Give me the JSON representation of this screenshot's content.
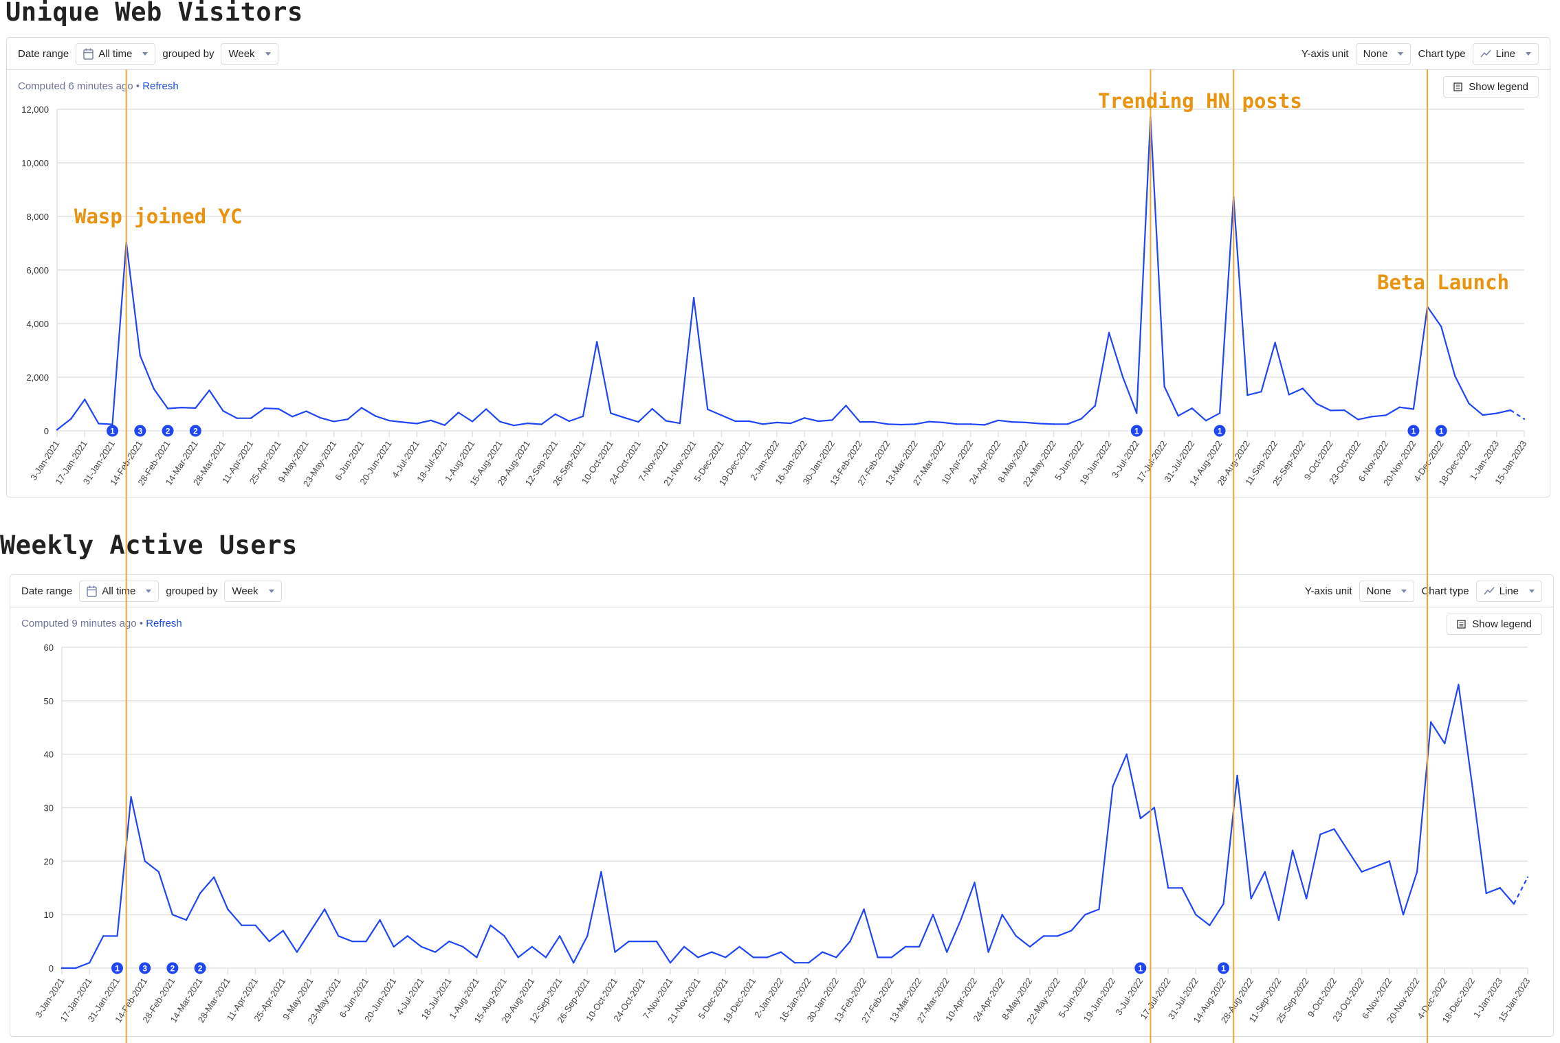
{
  "charts": [
    {
      "title": "Unique Web Visitors",
      "toolbar": {
        "date_range_label": "Date range",
        "date_range_value": "All time",
        "grouped_by_label": "grouped by",
        "grouped_by_value": "Week",
        "y_axis_unit_label": "Y-axis unit",
        "y_axis_unit_value": "None",
        "chart_type_label": "Chart type",
        "chart_type_value": "Line"
      },
      "computed_text": "Computed 6 minutes ago",
      "separator": "•",
      "refresh_label": "Refresh",
      "show_legend_label": "Show legend"
    },
    {
      "title": "Weekly Active Users",
      "toolbar": {
        "date_range_label": "Date range",
        "date_range_value": "All time",
        "grouped_by_label": "grouped by",
        "grouped_by_value": "Week",
        "y_axis_unit_label": "Y-axis unit",
        "y_axis_unit_value": "None",
        "chart_type_label": "Chart type",
        "chart_type_value": "Line"
      },
      "computed_text": "Computed 9 minutes ago",
      "separator": "•",
      "refresh_label": "Refresh",
      "show_legend_label": "Show legend"
    }
  ],
  "events": {
    "lines": [
      {
        "date": "7-Feb-2021"
      },
      {
        "date": "10-Jul-2022"
      },
      {
        "date": "21-Aug-2022"
      },
      {
        "date": "27-Nov-2022"
      }
    ],
    "labels": [
      {
        "text": "Wasp joined YC"
      },
      {
        "text": "Trending HN posts"
      },
      {
        "text": "Beta Launch"
      }
    ],
    "color": "#f0a530",
    "text_color": "#e8940f"
  },
  "colors": {
    "series": "#1f45f5",
    "grid": "#e3e3e3",
    "marker": "#1f45f5"
  },
  "icons": {
    "date_range": "calendar-icon",
    "chart_type": "line-chart-icon",
    "legend": "list-icon",
    "dropdown": "caret-down-icon"
  },
  "chart_data": [
    {
      "type": "line",
      "title": "Unique Web Visitors",
      "ylim": [
        0,
        12000
      ],
      "yticks": [
        "0",
        "2,000",
        "4,000",
        "6,000",
        "8,000",
        "10,000",
        "12,000"
      ],
      "grid": true,
      "legend": "hidden",
      "last_segment": "dashed",
      "x": [
        "3-Jan-2021",
        "10-Jan-2021",
        "17-Jan-2021",
        "24-Jan-2021",
        "31-Jan-2021",
        "7-Feb-2021",
        "14-Feb-2021",
        "21-Feb-2021",
        "28-Feb-2021",
        "7-Mar-2021",
        "14-Mar-2021",
        "21-Mar-2021",
        "28-Mar-2021",
        "4-Apr-2021",
        "11-Apr-2021",
        "18-Apr-2021",
        "25-Apr-2021",
        "2-May-2021",
        "9-May-2021",
        "16-May-2021",
        "23-May-2021",
        "30-May-2021",
        "6-Jun-2021",
        "13-Jun-2021",
        "20-Jun-2021",
        "27-Jun-2021",
        "4-Jul-2021",
        "11-Jul-2021",
        "18-Jul-2021",
        "25-Jul-2021",
        "1-Aug-2021",
        "8-Aug-2021",
        "15-Aug-2021",
        "22-Aug-2021",
        "29-Aug-2021",
        "5-Sep-2021",
        "12-Sep-2021",
        "19-Sep-2021",
        "26-Sep-2021",
        "3-Oct-2021",
        "10-Oct-2021",
        "17-Oct-2021",
        "24-Oct-2021",
        "31-Oct-2021",
        "7-Nov-2021",
        "14-Nov-2021",
        "21-Nov-2021",
        "28-Nov-2021",
        "5-Dec-2021",
        "12-Dec-2021",
        "19-Dec-2021",
        "26-Dec-2021",
        "2-Jan-2022",
        "9-Jan-2022",
        "16-Jan-2022",
        "23-Jan-2022",
        "30-Jan-2022",
        "6-Feb-2022",
        "13-Feb-2022",
        "20-Feb-2022",
        "27-Feb-2022",
        "6-Mar-2022",
        "13-Mar-2022",
        "20-Mar-2022",
        "27-Mar-2022",
        "3-Apr-2022",
        "10-Apr-2022",
        "17-Apr-2022",
        "24-Apr-2022",
        "1-May-2022",
        "8-May-2022",
        "15-May-2022",
        "22-May-2022",
        "29-May-2022",
        "5-Jun-2022",
        "12-Jun-2022",
        "19-Jun-2022",
        "26-Jun-2022",
        "3-Jul-2022",
        "10-Jul-2022",
        "17-Jul-2022",
        "24-Jul-2022",
        "31-Jul-2022",
        "7-Aug-2022",
        "14-Aug-2022",
        "21-Aug-2022",
        "28-Aug-2022",
        "4-Sep-2022",
        "11-Sep-2022",
        "18-Sep-2022",
        "25-Sep-2022",
        "2-Oct-2022",
        "9-Oct-2022",
        "16-Oct-2022",
        "23-Oct-2022",
        "30-Oct-2022",
        "6-Nov-2022",
        "13-Nov-2022",
        "20-Nov-2022",
        "27-Nov-2022",
        "4-Dec-2022",
        "11-Dec-2022",
        "18-Dec-2022",
        "25-Dec-2022",
        "1-Jan-2023",
        "8-Jan-2023",
        "15-Jan-2023"
      ],
      "values": [
        40,
        440,
        1170,
        270,
        240,
        7030,
        2810,
        1560,
        830,
        870,
        850,
        1510,
        740,
        470,
        470,
        840,
        820,
        530,
        730,
        490,
        350,
        430,
        860,
        550,
        380,
        320,
        270,
        390,
        210,
        680,
        350,
        810,
        340,
        200,
        280,
        240,
        620,
        360,
        540,
        3320,
        660,
        490,
        330,
        820,
        370,
        280,
        4970,
        800,
        580,
        360,
        360,
        250,
        310,
        280,
        480,
        360,
        400,
        940,
        330,
        330,
        250,
        230,
        250,
        340,
        310,
        250,
        250,
        220,
        390,
        330,
        310,
        270,
        250,
        250,
        450,
        940,
        3660,
        2000,
        660,
        11710,
        1650,
        560,
        840,
        380,
        660,
        8720,
        1330,
        1460,
        3290,
        1350,
        1580,
        1010,
        760,
        770,
        420,
        530,
        580,
        880,
        810,
        4630,
        3890,
        2040,
        1020,
        590,
        650,
        770,
        440
      ],
      "markers": [
        {
          "date": "31-Jan-2021",
          "count": "1"
        },
        {
          "date": "14-Feb-2021",
          "count": "3"
        },
        {
          "date": "28-Feb-2021",
          "count": "2"
        },
        {
          "date": "14-Mar-2021",
          "count": "2"
        },
        {
          "date": "3-Jul-2022",
          "count": "1"
        },
        {
          "date": "14-Aug-2022",
          "count": "1"
        },
        {
          "date": "20-Nov-2022",
          "count": "1"
        },
        {
          "date": "4-Dec-2022",
          "count": "1"
        }
      ]
    },
    {
      "type": "line",
      "title": "Weekly Active Users",
      "ylim": [
        0,
        60
      ],
      "yticks": [
        "0",
        "10",
        "20",
        "30",
        "40",
        "50",
        "60"
      ],
      "grid": true,
      "legend": "hidden",
      "last_segment": "dashed",
      "x": [
        "3-Jan-2021",
        "10-Jan-2021",
        "17-Jan-2021",
        "24-Jan-2021",
        "31-Jan-2021",
        "7-Feb-2021",
        "14-Feb-2021",
        "21-Feb-2021",
        "28-Feb-2021",
        "7-Mar-2021",
        "14-Mar-2021",
        "21-Mar-2021",
        "28-Mar-2021",
        "4-Apr-2021",
        "11-Apr-2021",
        "18-Apr-2021",
        "25-Apr-2021",
        "2-May-2021",
        "9-May-2021",
        "16-May-2021",
        "23-May-2021",
        "30-May-2021",
        "6-Jun-2021",
        "13-Jun-2021",
        "20-Jun-2021",
        "27-Jun-2021",
        "4-Jul-2021",
        "11-Jul-2021",
        "18-Jul-2021",
        "25-Jul-2021",
        "1-Aug-2021",
        "8-Aug-2021",
        "15-Aug-2021",
        "22-Aug-2021",
        "29-Aug-2021",
        "5-Sep-2021",
        "12-Sep-2021",
        "19-Sep-2021",
        "26-Sep-2021",
        "3-Oct-2021",
        "10-Oct-2021",
        "17-Oct-2021",
        "24-Oct-2021",
        "31-Oct-2021",
        "7-Nov-2021",
        "14-Nov-2021",
        "21-Nov-2021",
        "28-Nov-2021",
        "5-Dec-2021",
        "12-Dec-2021",
        "19-Dec-2021",
        "26-Dec-2021",
        "2-Jan-2022",
        "9-Jan-2022",
        "16-Jan-2022",
        "23-Jan-2022",
        "30-Jan-2022",
        "6-Feb-2022",
        "13-Feb-2022",
        "20-Feb-2022",
        "27-Feb-2022",
        "6-Mar-2022",
        "13-Mar-2022",
        "20-Mar-2022",
        "27-Mar-2022",
        "3-Apr-2022",
        "10-Apr-2022",
        "17-Apr-2022",
        "24-Apr-2022",
        "1-May-2022",
        "8-May-2022",
        "15-May-2022",
        "22-May-2022",
        "29-May-2022",
        "5-Jun-2022",
        "12-Jun-2022",
        "19-Jun-2022",
        "26-Jun-2022",
        "3-Jul-2022",
        "10-Jul-2022",
        "17-Jul-2022",
        "24-Jul-2022",
        "31-Jul-2022",
        "7-Aug-2022",
        "14-Aug-2022",
        "21-Aug-2022",
        "28-Aug-2022",
        "4-Sep-2022",
        "11-Sep-2022",
        "18-Sep-2022",
        "25-Sep-2022",
        "2-Oct-2022",
        "9-Oct-2022",
        "16-Oct-2022",
        "23-Oct-2022",
        "30-Oct-2022",
        "6-Nov-2022",
        "13-Nov-2022",
        "20-Nov-2022",
        "27-Nov-2022",
        "4-Dec-2022",
        "11-Dec-2022",
        "18-Dec-2022",
        "25-Dec-2022",
        "1-Jan-2023",
        "8-Jan-2023",
        "15-Jan-2023"
      ],
      "values": [
        0,
        0,
        1,
        6,
        6,
        32,
        20,
        18,
        10,
        9,
        14,
        17,
        11,
        8,
        8,
        5,
        7,
        3,
        7,
        11,
        6,
        5,
        5,
        9,
        4,
        6,
        4,
        3,
        5,
        4,
        2,
        8,
        6,
        2,
        4,
        2,
        6,
        1,
        6,
        18,
        3,
        5,
        5,
        5,
        1,
        4,
        2,
        3,
        2,
        4,
        2,
        2,
        3,
        1,
        1,
        3,
        2,
        5,
        11,
        2,
        2,
        4,
        4,
        10,
        3,
        9,
        16,
        3,
        10,
        6,
        4,
        6,
        6,
        7,
        10,
        11,
        34,
        40,
        28,
        30,
        15,
        15,
        10,
        8,
        12,
        36,
        13,
        18,
        9,
        22,
        13,
        25,
        26,
        22,
        18,
        19,
        20,
        10,
        18,
        46,
        42,
        53,
        34,
        14,
        15,
        12,
        17
      ],
      "markers": [
        {
          "date": "31-Jan-2021",
          "count": "1"
        },
        {
          "date": "14-Feb-2021",
          "count": "3"
        },
        {
          "date": "28-Feb-2021",
          "count": "2"
        },
        {
          "date": "14-Mar-2021",
          "count": "2"
        },
        {
          "date": "3-Jul-2022",
          "count": "1"
        },
        {
          "date": "14-Aug-2022",
          "count": "1"
        }
      ]
    }
  ]
}
